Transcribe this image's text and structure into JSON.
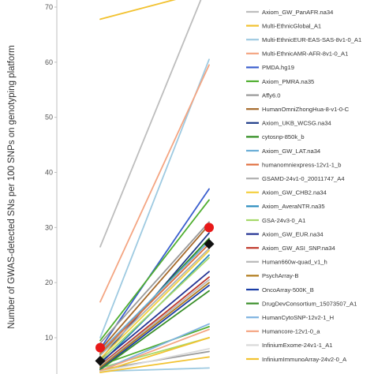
{
  "chart_data": {
    "type": "line",
    "ylabel": "Number of GWAS-detected SNs per 100 SNPs on genotyping platform",
    "y_ticks": [
      10,
      20,
      30,
      40,
      50,
      60,
      70
    ],
    "ylim": [
      3.5,
      75
    ],
    "legend_position": "right",
    "grid": false,
    "series": [
      {
        "name": "Axiom_GW_PanAFR.na34",
        "color": "#bdbdbd",
        "values": [
          26.5,
          75
        ]
      },
      {
        "name": "Multi-EthnicGlobal_A1",
        "color": "#f2c230",
        "values": [
          67.8,
          73
        ]
      },
      {
        "name": "Multi-EthnicEUR-EAS-SAS-8v1-0_A1",
        "color": "#9ecae1",
        "values": [
          10,
          60.5
        ]
      },
      {
        "name": "Multi-EthnicAMR-AFR-8v1-0_A1",
        "color": "#f4a582",
        "values": [
          16.5,
          59.5
        ]
      },
      {
        "name": "PMDA.hg19",
        "color": "#3b5fce",
        "values": [
          8,
          37
        ]
      },
      {
        "name": "Axiom_PMRA.na35",
        "color": "#4fae2f",
        "values": [
          9.5,
          35
        ]
      },
      {
        "name": "Affy6.0",
        "color": "#999999",
        "values": [
          9,
          31
        ]
      },
      {
        "name": "HumanOmniZhongHua-8-v1-0-C",
        "color": "#a5692a",
        "values": [
          7.8,
          30.5
        ]
      },
      {
        "name": "Axiom_UKB_WCSG.na34",
        "color": "#1f3c88",
        "values": [
          6,
          29
        ]
      },
      {
        "name": "cytosnp-850k_b",
        "color": "#2e8b1e",
        "values": [
          7,
          28
        ]
      },
      {
        "name": "Axiom_GW_LAT.na34",
        "color": "#6baed6",
        "values": [
          7.5,
          27.5
        ]
      },
      {
        "name": "humanomniexpress-12v1-1_b",
        "color": "#e07040",
        "values": [
          7.2,
          27
        ]
      },
      {
        "name": "GSAMD-24v1-0_20011747_A4",
        "color": "#b0b0b0",
        "values": [
          6.8,
          26.2
        ]
      },
      {
        "name": "Axiom_GW_CHB2.na34",
        "color": "#f4d03f",
        "values": [
          6.2,
          25.8
        ]
      },
      {
        "name": "Axiom_AveraNTR.na35",
        "color": "#2b8cbe",
        "values": [
          5.2,
          25
        ]
      },
      {
        "name": "GSA-24v3-0_A1",
        "color": "#a6d96a",
        "values": [
          5.8,
          24.5
        ]
      },
      {
        "name": "Axiom_GW_EUR.na34",
        "color": "#253494",
        "values": [
          5.5,
          22
        ]
      },
      {
        "name": "Axiom_GW_ASI_SNP.na34",
        "color": "#c0392b",
        "values": [
          5,
          21
        ]
      },
      {
        "name": "Human660w-quad_v1_h",
        "color": "#b8b8b8",
        "values": [
          4.8,
          20.5
        ]
      },
      {
        "name": "PsychArray-B",
        "color": "#b07a1a",
        "values": [
          4.6,
          20
        ]
      },
      {
        "name": "OncoArray-500K_B",
        "color": "#1a3da6",
        "values": [
          4.3,
          19.5
        ]
      },
      {
        "name": "DrugDevConsortium_15073507_A1",
        "color": "#3a8f2a",
        "values": [
          4.2,
          18.5
        ]
      },
      {
        "name": "HumanCytoSNP-12v2-1_H",
        "color": "#7fb3e0",
        "values": [
          4,
          12.5
        ]
      },
      {
        "name": "Humancore-12v1-0_a",
        "color": "#f4a582",
        "values": [
          4,
          11.5
        ]
      },
      {
        "name": "InfiniumExome-24v1-1_A1",
        "color": "#d9d9d9",
        "values": [
          3.8,
          8
        ]
      },
      {
        "name": "InfiniumImmunoArray-24v2-0_A",
        "color": "#f2c230",
        "values": [
          3.7,
          6.5
        ]
      }
    ],
    "extra_lines": [
      {
        "color": "#4fae2f",
        "values": [
          5,
          12
        ]
      },
      {
        "color": "#a6d96a",
        "values": [
          4.5,
          10
        ]
      },
      {
        "color": "#9ecae1",
        "values": [
          3.9,
          4.5
        ]
      },
      {
        "color": "#999999",
        "values": [
          4.2,
          7.5
        ]
      },
      {
        "color": "#f2c230",
        "values": [
          3.8,
          10
        ]
      }
    ],
    "markers": [
      {
        "shape": "circle",
        "color": "#e81919",
        "values": [
          8.2,
          30
        ]
      },
      {
        "shape": "diamond",
        "color": "#111111",
        "values": [
          5.8,
          27
        ]
      }
    ]
  }
}
